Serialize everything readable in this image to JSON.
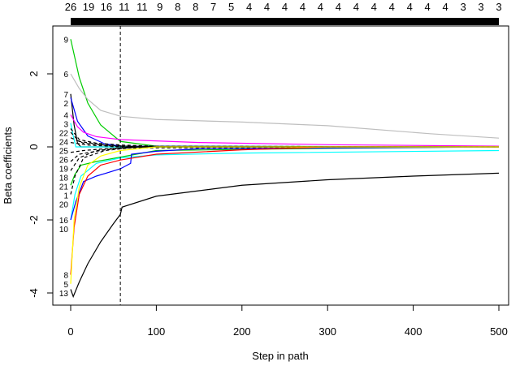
{
  "chart_data": {
    "type": "line",
    "xlabel": "Step in path",
    "ylabel": "Beta coefficients",
    "xlim": [
      -5,
      505
    ],
    "ylim": [
      -4.2,
      3.1
    ],
    "x_ticks": [
      0,
      100,
      200,
      300,
      400,
      500
    ],
    "y_ticks": [
      -4,
      -2,
      0,
      2
    ],
    "top_axis_labels": [
      "26",
      "19",
      "16",
      "11",
      "11",
      "9",
      "8",
      "8",
      "7",
      "5",
      "4",
      "4",
      "4",
      "4",
      "4",
      "4",
      "4",
      "4",
      "4",
      "4",
      "4",
      "4",
      "3",
      "3",
      "3"
    ],
    "selected_step": 58,
    "grid": false,
    "series": [
      {
        "label": "9",
        "color": "#00cc00",
        "dash": false,
        "points": [
          [
            0,
            2.95
          ],
          [
            10,
            1.9
          ],
          [
            20,
            1.2
          ],
          [
            35,
            0.6
          ],
          [
            58,
            0.15
          ],
          [
            100,
            0.02
          ],
          [
            500,
            0
          ]
        ]
      },
      {
        "label": "6",
        "color": "#bebebe",
        "dash": false,
        "points": [
          [
            0,
            2.0
          ],
          [
            10,
            1.6
          ],
          [
            20,
            1.3
          ],
          [
            35,
            1.0
          ],
          [
            58,
            0.84
          ],
          [
            100,
            0.75
          ],
          [
            200,
            0.68
          ],
          [
            300,
            0.58
          ],
          [
            420,
            0.36
          ],
          [
            500,
            0.24
          ]
        ]
      },
      {
        "label": "7",
        "color": "#000000",
        "dash": false,
        "points": [
          [
            0,
            1.45
          ],
          [
            4,
            0.6
          ],
          [
            8,
            0.1
          ],
          [
            12,
            0
          ],
          [
            500,
            0
          ]
        ]
      },
      {
        "label": "2",
        "color": "#0000ff",
        "dash": false,
        "points": [
          [
            0,
            1.35
          ],
          [
            8,
            0.7
          ],
          [
            20,
            0.3
          ],
          [
            40,
            0.08
          ],
          [
            60,
            0.02
          ],
          [
            500,
            0
          ]
        ]
      },
      {
        "label": "4",
        "color": "#ff00ff",
        "dash": false,
        "points": [
          [
            0,
            0.88
          ],
          [
            8,
            0.55
          ],
          [
            15,
            0.4
          ],
          [
            30,
            0.28
          ],
          [
            58,
            0.2
          ],
          [
            150,
            0.12
          ],
          [
            300,
            0.06
          ],
          [
            500,
            0.02
          ]
        ]
      },
      {
        "label": "3",
        "color": "#00ffff",
        "dash": false,
        "points": [
          [
            0,
            0.65
          ],
          [
            3,
            0.3
          ],
          [
            6,
            0
          ],
          [
            500,
            0
          ]
        ]
      },
      {
        "label": "22",
        "color": "#000000",
        "dash": true,
        "points": [
          [
            0,
            0.5
          ],
          [
            10,
            0.2
          ],
          [
            30,
            0.1
          ],
          [
            60,
            0.05
          ],
          [
            120,
            0
          ],
          [
            500,
            0
          ]
        ]
      },
      {
        "label": "24",
        "color": "#000000",
        "dash": true,
        "points": [
          [
            0,
            0.4
          ],
          [
            10,
            0.15
          ],
          [
            40,
            0.05
          ],
          [
            80,
            0
          ],
          [
            500,
            0
          ]
        ]
      },
      {
        "label": "25",
        "color": "#000000",
        "dash": true,
        "points": [
          [
            0,
            0.25
          ],
          [
            15,
            0.1
          ],
          [
            50,
            0.02
          ],
          [
            500,
            0
          ]
        ]
      },
      {
        "label": "26",
        "color": "#000000",
        "dash": true,
        "points": [
          [
            0,
            0.12
          ],
          [
            20,
            0.05
          ],
          [
            60,
            0
          ],
          [
            500,
            0
          ]
        ]
      },
      {
        "label": "19",
        "color": "#000000",
        "dash": true,
        "points": [
          [
            0,
            -0.15
          ],
          [
            15,
            -0.1
          ],
          [
            50,
            -0.03
          ],
          [
            500,
            0
          ]
        ]
      },
      {
        "label": "18",
        "color": "#000000",
        "dash": true,
        "points": [
          [
            0,
            -0.4
          ],
          [
            10,
            -0.2
          ],
          [
            40,
            -0.08
          ],
          [
            80,
            0
          ],
          [
            500,
            0
          ]
        ]
      },
      {
        "label": "21",
        "color": "#000000",
        "dash": true,
        "points": [
          [
            0,
            -0.65
          ],
          [
            10,
            -0.3
          ],
          [
            30,
            -0.1
          ],
          [
            70,
            0
          ],
          [
            500,
            0
          ]
        ]
      },
      {
        "label": "1",
        "color": "#00cc00",
        "dash": false,
        "points": [
          [
            0,
            -1.05
          ],
          [
            5,
            -0.75
          ],
          [
            12,
            -0.5
          ],
          [
            30,
            -0.4
          ],
          [
            58,
            -0.28
          ],
          [
            100,
            -0.1
          ],
          [
            300,
            -0.04
          ],
          [
            500,
            0
          ]
        ]
      },
      {
        "label": "20",
        "color": "#000000",
        "dash": true,
        "points": [
          [
            0,
            -1.3
          ],
          [
            5,
            -0.8
          ],
          [
            15,
            -0.3
          ],
          [
            40,
            -0.1
          ],
          [
            80,
            0
          ],
          [
            500,
            0
          ]
        ]
      },
      {
        "label": "16",
        "color": "#00ffff",
        "dash": false,
        "points": [
          [
            0,
            -2.0
          ],
          [
            5,
            -1.3
          ],
          [
            12,
            -0.8
          ],
          [
            30,
            -0.45
          ],
          [
            58,
            -0.3
          ],
          [
            100,
            -0.22
          ],
          [
            200,
            -0.17
          ],
          [
            500,
            -0.1
          ]
        ]
      },
      {
        "label": "10",
        "color": "#0000ff",
        "dash": false,
        "points": [
          [
            0,
            -2.0
          ],
          [
            6,
            -1.5
          ],
          [
            15,
            -0.95
          ],
          [
            30,
            -0.8
          ],
          [
            58,
            -0.6
          ],
          [
            70,
            -0.45
          ],
          [
            71,
            -0.2
          ],
          [
            100,
            -0.12
          ],
          [
            150,
            -0.05
          ],
          [
            500,
            0
          ]
        ]
      },
      {
        "label": "8",
        "color": "#ff0000",
        "dash": false,
        "points": [
          [
            0,
            -3.5
          ],
          [
            4,
            -2.2
          ],
          [
            10,
            -1.3
          ],
          [
            20,
            -0.8
          ],
          [
            35,
            -0.5
          ],
          [
            58,
            -0.36
          ],
          [
            100,
            -0.2
          ],
          [
            200,
            -0.08
          ],
          [
            300,
            0
          ],
          [
            500,
            0
          ]
        ]
      },
      {
        "label": "5",
        "color": "#ffff00",
        "dash": false,
        "points": [
          [
            0,
            -3.75
          ],
          [
            4,
            -2.0
          ],
          [
            10,
            -1.1
          ],
          [
            20,
            -0.5
          ],
          [
            35,
            -0.25
          ],
          [
            58,
            -0.1
          ],
          [
            100,
            0
          ],
          [
            500,
            0
          ]
        ]
      },
      {
        "label": "13",
        "color": "#000000",
        "dash": false,
        "points": [
          [
            0,
            -3.9
          ],
          [
            3,
            -4.1
          ],
          [
            10,
            -3.7
          ],
          [
            20,
            -3.2
          ],
          [
            35,
            -2.6
          ],
          [
            50,
            -2.1
          ],
          [
            58,
            -1.85
          ],
          [
            60,
            -1.65
          ],
          [
            100,
            -1.35
          ],
          [
            150,
            -1.2
          ],
          [
            200,
            -1.05
          ],
          [
            300,
            -0.9
          ],
          [
            400,
            -0.8
          ],
          [
            500,
            -0.72
          ]
        ]
      }
    ]
  }
}
